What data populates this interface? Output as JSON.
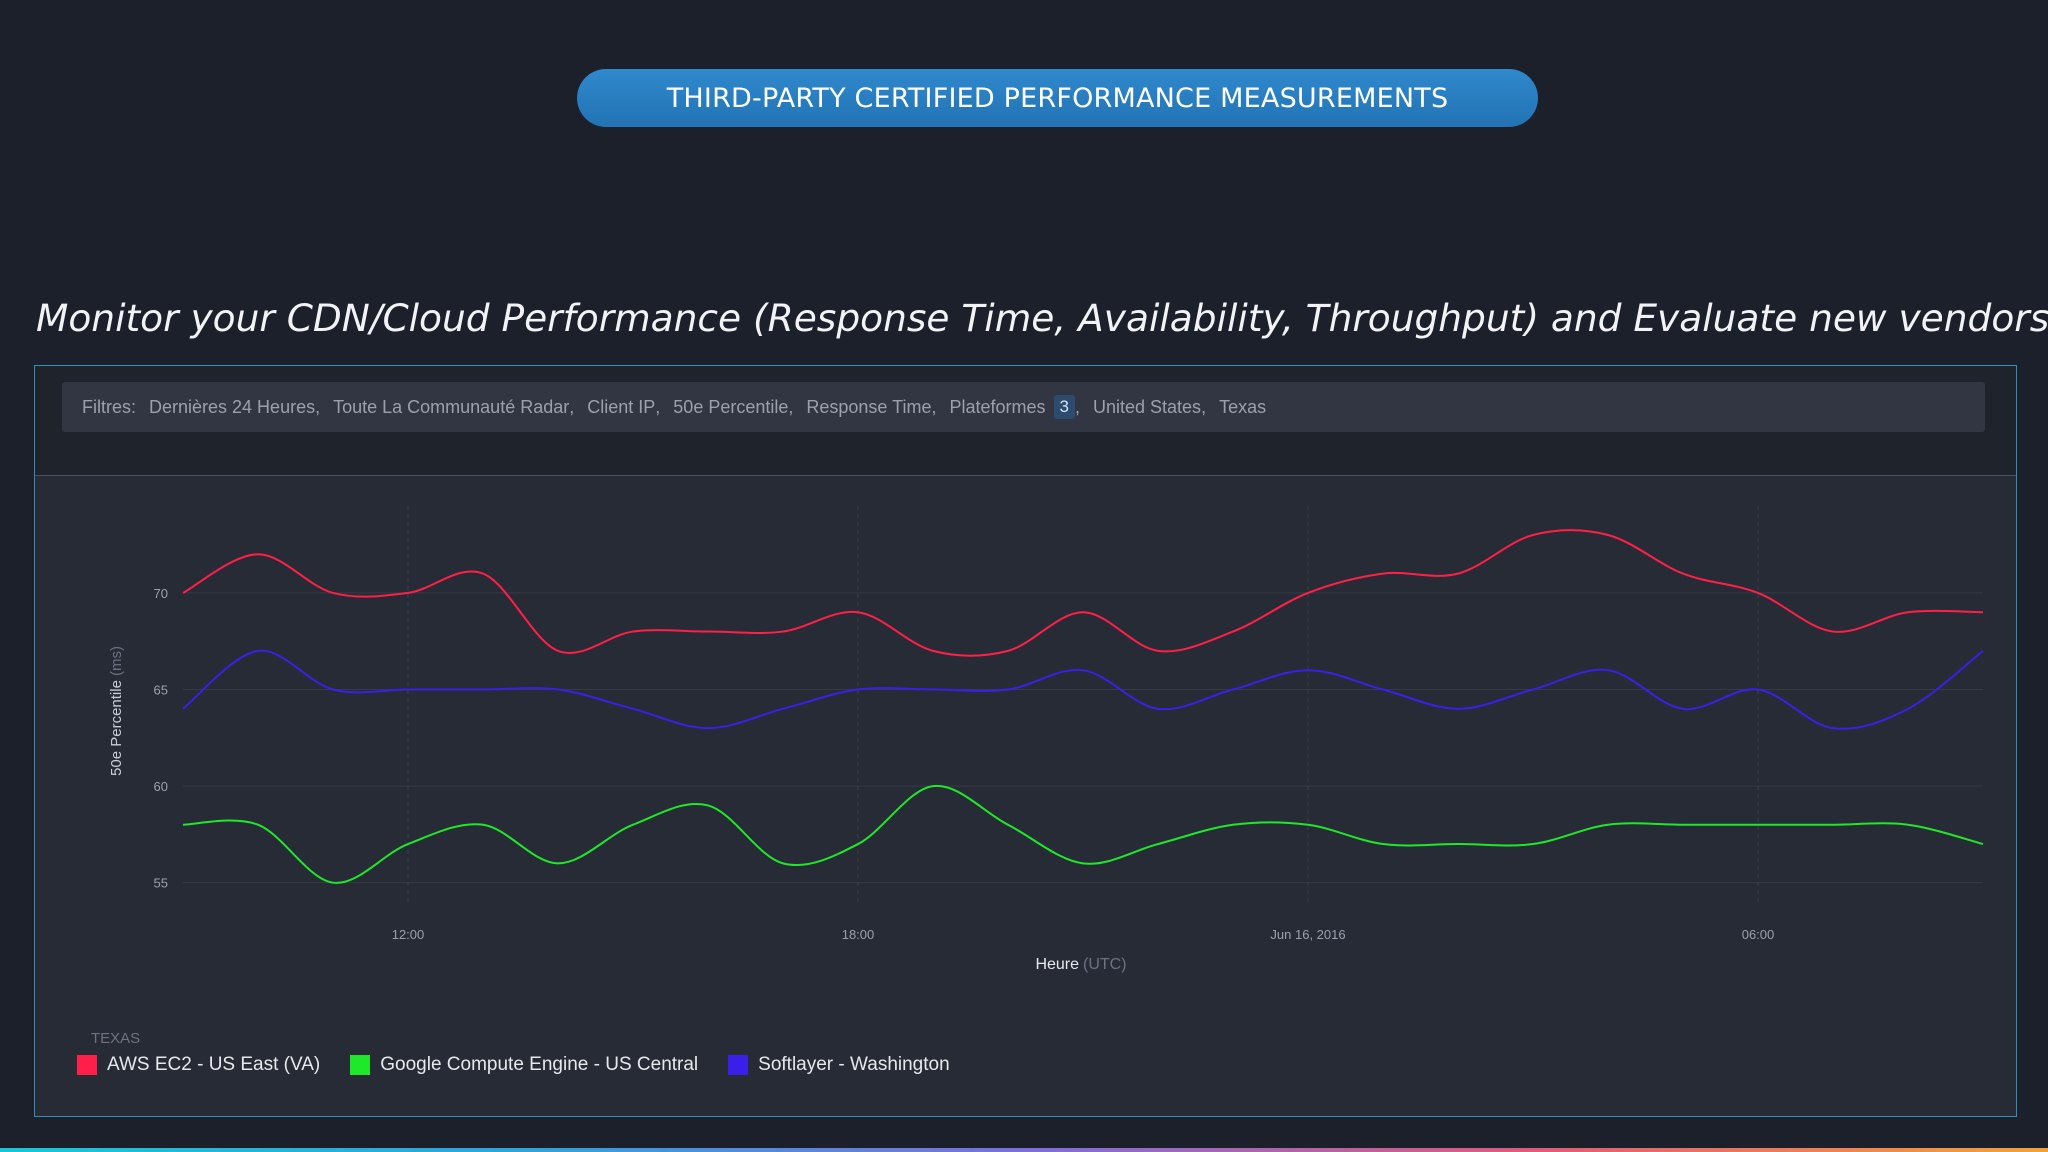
{
  "banner": "THIRD-PARTY CERTIFIED PERFORMANCE MEASUREMENTS",
  "heading": "Monitor your CDN/Cloud Performance (Response Time, Availability, Throughput) and Evaluate new vendors:",
  "filters": {
    "label": "Filtres:",
    "items": [
      "Dernières 24 Heures",
      "Toute La Communauté Radar",
      "Client IP",
      "50e Percentile",
      "Response Time",
      "Plateformes",
      "United States",
      "Texas"
    ],
    "badge": "3"
  },
  "legend_title": "TEXAS",
  "colors": {
    "accent": "#2f89cc",
    "panel_border": "#2f8fb6"
  },
  "chart_data": {
    "type": "line",
    "ylabel": "50e Percentile",
    "ylabel_unit": "(ms)",
    "xlabel": "Heure",
    "xlabel_unit": "(UTC)",
    "ylim": [
      54,
      74.5
    ],
    "yticks": [
      55,
      60,
      65,
      70
    ],
    "xlim": [
      0,
      24
    ],
    "xticks": [
      {
        "x": 3,
        "label": "12:00"
      },
      {
        "x": 9,
        "label": "18:00"
      },
      {
        "x": 15,
        "label": "Jun 16, 2016"
      },
      {
        "x": 21,
        "label": "06:00"
      }
    ],
    "grid": true,
    "legend_position": "bottom-left",
    "x": [
      0,
      1,
      2,
      3,
      4,
      5,
      6,
      7,
      8,
      9,
      10,
      11,
      12,
      13,
      14,
      15,
      16,
      17,
      18,
      19,
      20,
      21,
      22,
      23,
      24
    ],
    "series": [
      {
        "name": "AWS EC2 - US East (VA)",
        "color": "#ff1f48",
        "values": [
          70,
          72,
          70,
          70,
          71,
          67,
          68,
          68,
          68,
          69,
          67,
          67,
          69,
          67,
          68,
          70,
          71,
          71,
          73,
          73,
          71,
          70,
          68,
          69,
          69
        ]
      },
      {
        "name": "Google Compute Engine - US Central",
        "color": "#1fe82a",
        "values": [
          58,
          58,
          55,
          57,
          58,
          56,
          58,
          59,
          56,
          57,
          60,
          58,
          56,
          57,
          58,
          58,
          57,
          57,
          57,
          58,
          58,
          58,
          58,
          58,
          57
        ]
      },
      {
        "name": "Softlayer - Washington",
        "color": "#3a1fe8",
        "values": [
          64,
          67,
          65,
          65,
          65,
          65,
          64,
          63,
          64,
          65,
          65,
          65,
          66,
          64,
          65,
          66,
          65,
          64,
          65,
          66,
          64,
          65,
          63,
          64,
          67
        ]
      }
    ]
  }
}
